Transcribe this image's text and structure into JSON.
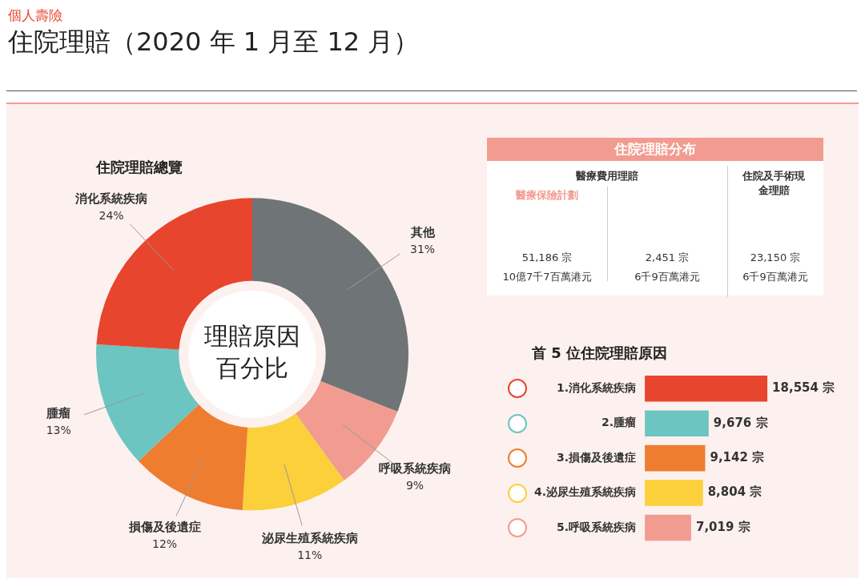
{
  "chart_data": [
    {
      "type": "other",
      "title": "住院理賠（2020 年 1 月至 12 月）",
      "subtitle": "個人壽險"
    },
    {
      "type": "donut",
      "title": "住院理賠總覽",
      "categories": [
        "其他",
        "呼吸系統疾病",
        "泌尿生殖系統疾病",
        "損傷及後遺症",
        "腫瘤",
        "消化系統疾病"
      ],
      "values": [
        31,
        9,
        11,
        12,
        13,
        24
      ],
      "colors": [
        "#6f7476",
        "#f29b91",
        "#fbd03a",
        "#ee7d30",
        "#6cc5c1",
        "#e8452f"
      ],
      "value_labels": [
        "31%",
        "9%",
        "11%",
        "12%",
        "13%",
        "24%"
      ],
      "annotations": [
        "理賠原因",
        "百分比"
      ]
    },
    {
      "type": "other",
      "title": "住院理賠分布",
      "annotations": [
        "醫療費用理賠",
        "醫療保險計劃",
        "51,186 宗",
        "10億7千7百萬港元",
        "2,451 宗",
        "6千9百萬港元",
        "住院及手術現金理賠",
        "23,150 宗",
        "6千9百萬港元"
      ]
    },
    {
      "type": "bar",
      "orientation": "horizontal",
      "title": "首 5 位住院理賠原因",
      "categories": [
        "1.消化系統疾病",
        "2.腫瘤",
        "3.損傷及後遺症",
        "4.泌尿生殖系統疾病",
        "5.呼吸系統疾病"
      ],
      "values": [
        18554,
        9676,
        9142,
        8804,
        7019
      ],
      "colors": [
        "#e8452f",
        "#6cc5c1",
        "#ee7d30",
        "#fbd03a",
        "#f29b91"
      ],
      "value_labels": [
        "18,554 宗",
        "9,676 宗",
        "9,142 宗",
        "8,804 宗",
        "7,019 宗"
      ],
      "tick_labels": "y"
    }
  ]
}
